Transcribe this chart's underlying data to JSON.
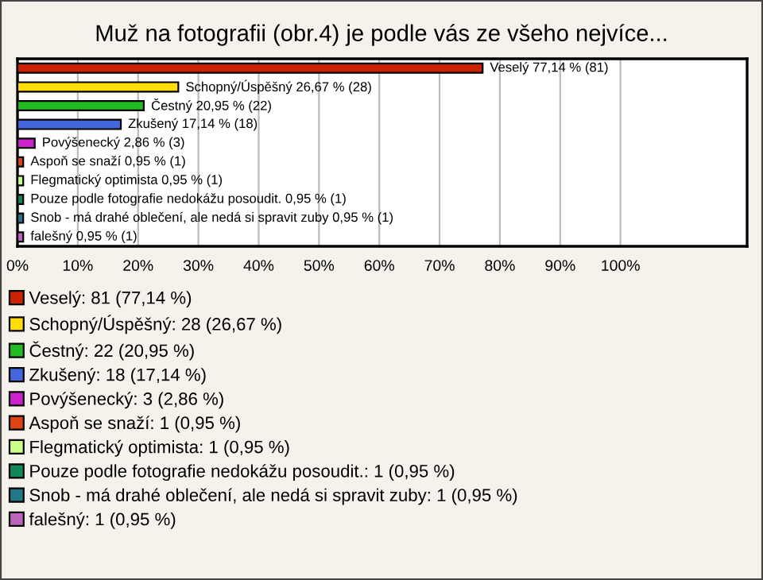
{
  "chart_data": {
    "type": "bar",
    "orientation": "horizontal",
    "title": "Muž na fotografii (obr.4) je podle vás ze všeho nejvíce...",
    "categories": [
      "Veselý",
      "Schopný/Úspěšný",
      "Čestný",
      "Zkušený",
      "Povýšenecký",
      "Aspoň se snaží",
      "Flegmatický optimista",
      "Pouze podle fotografie nedokážu posoudit.",
      "Snob - má drahé oblečení, ale nedá si spravit zuby",
      "falešný"
    ],
    "series": [
      {
        "name": "Veselý: 81 (77,14 %)",
        "color": "#cc2200",
        "values": [
          77.14,
          null,
          null,
          null,
          null,
          null,
          null,
          null,
          null,
          null
        ],
        "value_labels": [
          "77,14 % (81)",
          null,
          null,
          null,
          null,
          null,
          null,
          null,
          null,
          null
        ]
      },
      {
        "name": "Schopný/Úspěšný: 28 (26,67 %)",
        "color": "#ffdd00",
        "values": [
          null,
          26.67,
          null,
          null,
          null,
          null,
          null,
          null,
          null,
          null
        ],
        "value_labels": [
          null,
          "26,67 % (28)",
          null,
          null,
          null,
          null,
          null,
          null,
          null,
          null
        ]
      },
      {
        "name": "Čestný: 22 (20,95 %)",
        "color": "#22bb22",
        "values": [
          null,
          null,
          20.95,
          null,
          null,
          null,
          null,
          null,
          null,
          null
        ],
        "value_labels": [
          null,
          null,
          "20,95 % (22)",
          null,
          null,
          null,
          null,
          null,
          null,
          null
        ]
      },
      {
        "name": "Zkušený: 18 (17,14 %)",
        "color": "#4466dd",
        "values": [
          null,
          null,
          null,
          17.14,
          null,
          null,
          null,
          null,
          null,
          null
        ],
        "value_labels": [
          null,
          null,
          null,
          "17,14 % (18)",
          null,
          null,
          null,
          null,
          null,
          null
        ]
      },
      {
        "name": "Povýšenecký: 3 (2,86 %)",
        "color": "#cc22cc",
        "values": [
          null,
          null,
          null,
          null,
          2.86,
          null,
          null,
          null,
          null,
          null
        ],
        "value_labels": [
          null,
          null,
          null,
          null,
          "2,86 % (3)",
          null,
          null,
          null,
          null,
          null
        ]
      },
      {
        "name": "Aspoň se snaží: 1 (0,95 %)",
        "color": "#dd4411",
        "values": [
          null,
          null,
          null,
          null,
          null,
          0.95,
          null,
          null,
          null,
          null
        ],
        "value_labels": [
          null,
          null,
          null,
          null,
          null,
          "0,95 % (1)",
          null,
          null,
          null,
          null
        ]
      },
      {
        "name": "Flegmatický optimista: 1 (0,95 %)",
        "color": "#ccff88",
        "values": [
          null,
          null,
          null,
          null,
          null,
          null,
          0.95,
          null,
          null,
          null
        ],
        "value_labels": [
          null,
          null,
          null,
          null,
          null,
          null,
          "0,95 % (1)",
          null,
          null,
          null
        ]
      },
      {
        "name": "Pouze podle fotografie nedokážu posoudit.: 1 (0,95 %)",
        "color": "#118855",
        "values": [
          null,
          null,
          null,
          null,
          null,
          null,
          null,
          0.95,
          null,
          null
        ],
        "value_labels": [
          null,
          null,
          null,
          null,
          null,
          null,
          null,
          "0,95 % (1)",
          null,
          null
        ]
      },
      {
        "name": "Snob - má drahé oblečení, ale nedá si spravit zuby: 1 (0,95 %)",
        "color": "#227788",
        "values": [
          null,
          null,
          null,
          null,
          null,
          null,
          null,
          null,
          0.95,
          null
        ],
        "value_labels": [
          null,
          null,
          null,
          null,
          null,
          null,
          null,
          null,
          "0,95 % (1)",
          null
        ]
      },
      {
        "name": "falešný: 1 (0,95 %)",
        "color": "#bb66bb",
        "values": [
          null,
          null,
          null,
          null,
          null,
          null,
          null,
          null,
          null,
          0.95
        ],
        "value_labels": [
          null,
          null,
          null,
          null,
          null,
          null,
          null,
          null,
          null,
          "0,95 % (1)"
        ]
      }
    ],
    "xlim": [
      0,
      121
    ],
    "xticks": [
      {
        "value": 0,
        "label": "0%"
      },
      {
        "value": 10,
        "label": "10%"
      },
      {
        "value": 20,
        "label": "20%"
      },
      {
        "value": 30,
        "label": "30%"
      },
      {
        "value": 40,
        "label": "40%"
      },
      {
        "value": 50,
        "label": "50%"
      },
      {
        "value": 60,
        "label": "60%"
      },
      {
        "value": 70,
        "label": "70%"
      },
      {
        "value": 80,
        "label": "80%"
      },
      {
        "value": 90,
        "label": "90%"
      },
      {
        "value": 100,
        "label": "100%"
      }
    ],
    "grid": "x",
    "legend": "bottom"
  }
}
